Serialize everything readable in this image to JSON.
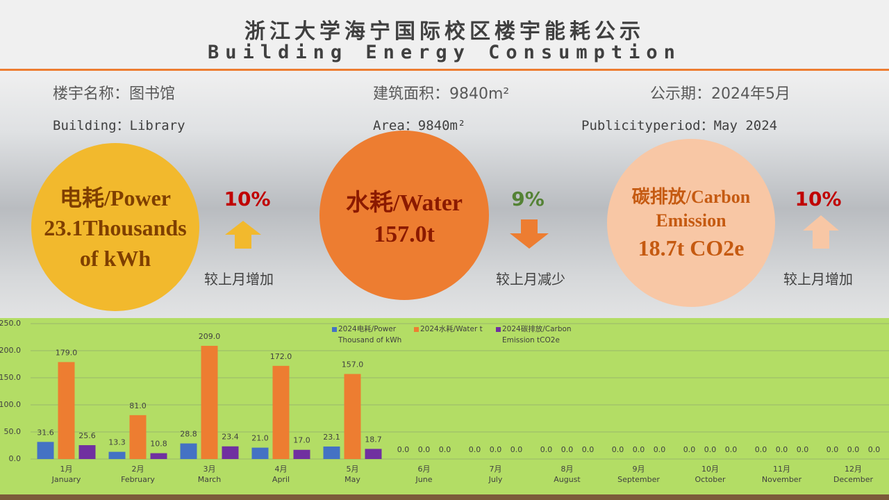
{
  "header": {
    "title_cn": "浙江大学海宁国际校区楼宇能耗公示",
    "title_en": "Building Energy Consumption"
  },
  "info": {
    "building_cn": "楼宇名称：图书馆",
    "area_cn": "建筑面积：9840m²",
    "period_cn": "公示期：2024年5月",
    "building_en": "Building：Library",
    "area_en": "Area：9840m²",
    "period_en": "Publicityperiod：May 2024"
  },
  "stats": [
    {
      "label": "电耗/Power",
      "value": "23.1Thousands of kWh",
      "change": "10%",
      "change_text": "较上月增加"
    },
    {
      "label": "水耗/Water",
      "value": "157.0t",
      "change": "9%",
      "change_text": "较上月减少"
    },
    {
      "label": "碳排放/Carbon Emission",
      "value": "18.7t CO2e",
      "change": "10%",
      "change_text": "较上月增加"
    }
  ],
  "chart_data": {
    "type": "bar",
    "categories": [
      "1月",
      "2月",
      "3月",
      "4月",
      "5月",
      "6月",
      "7月",
      "8月",
      "9月",
      "10月",
      "11月",
      "12月"
    ],
    "categories_en": [
      "January",
      "February",
      "March",
      "April",
      "May",
      "June",
      "July",
      "August",
      "September",
      "October",
      "November",
      "December"
    ],
    "series": [
      {
        "name": "2024电耗/Power Thousand of kWh",
        "color": "#4472c4",
        "values": [
          31.6,
          13.3,
          28.8,
          21,
          23.1,
          0,
          0,
          0,
          0,
          0,
          0,
          0
        ],
        "value_labels": [
          "31.6",
          "13.3",
          "28.8",
          "21.0",
          "23.1",
          "0.0",
          "0.0",
          "0.0",
          "0.0",
          "0.0",
          "0.0",
          "0.0"
        ]
      },
      {
        "name": "2024水耗/Water t",
        "color": "#ed7d31",
        "values": [
          179,
          81,
          209,
          172,
          157,
          0,
          0,
          0,
          0,
          0,
          0,
          0
        ],
        "value_labels": [
          "179.0",
          "81.0",
          "209.0",
          "172.0",
          "157.0",
          "0.0",
          "0.0",
          "0.0",
          "0.0",
          "0.0",
          "0.0",
          "0.0"
        ]
      },
      {
        "name": "2024碳排放/Carbon Emission tCO2e",
        "color": "#7030a0",
        "values": [
          25.6,
          10.8,
          23.4,
          17,
          18.7,
          0,
          0,
          0,
          0,
          0,
          0,
          0
        ],
        "value_labels": [
          "25.6",
          "10.8",
          "23.4",
          "17.0",
          "18.7",
          "0.0",
          "0.0",
          "0.0",
          "0.0",
          "0.0",
          "0.0",
          "0.0"
        ]
      }
    ],
    "ylim": [
      0,
      250
    ],
    "yticks": [
      {
        "value": 0,
        "label": "0.0"
      },
      {
        "value": 50,
        "label": "50.0"
      },
      {
        "value": 100,
        "label": "100.0"
      },
      {
        "value": 150,
        "label": "150.0"
      },
      {
        "value": 200,
        "label": "200.0"
      },
      {
        "value": 250,
        "label": "250.0"
      }
    ],
    "grid": true
  }
}
